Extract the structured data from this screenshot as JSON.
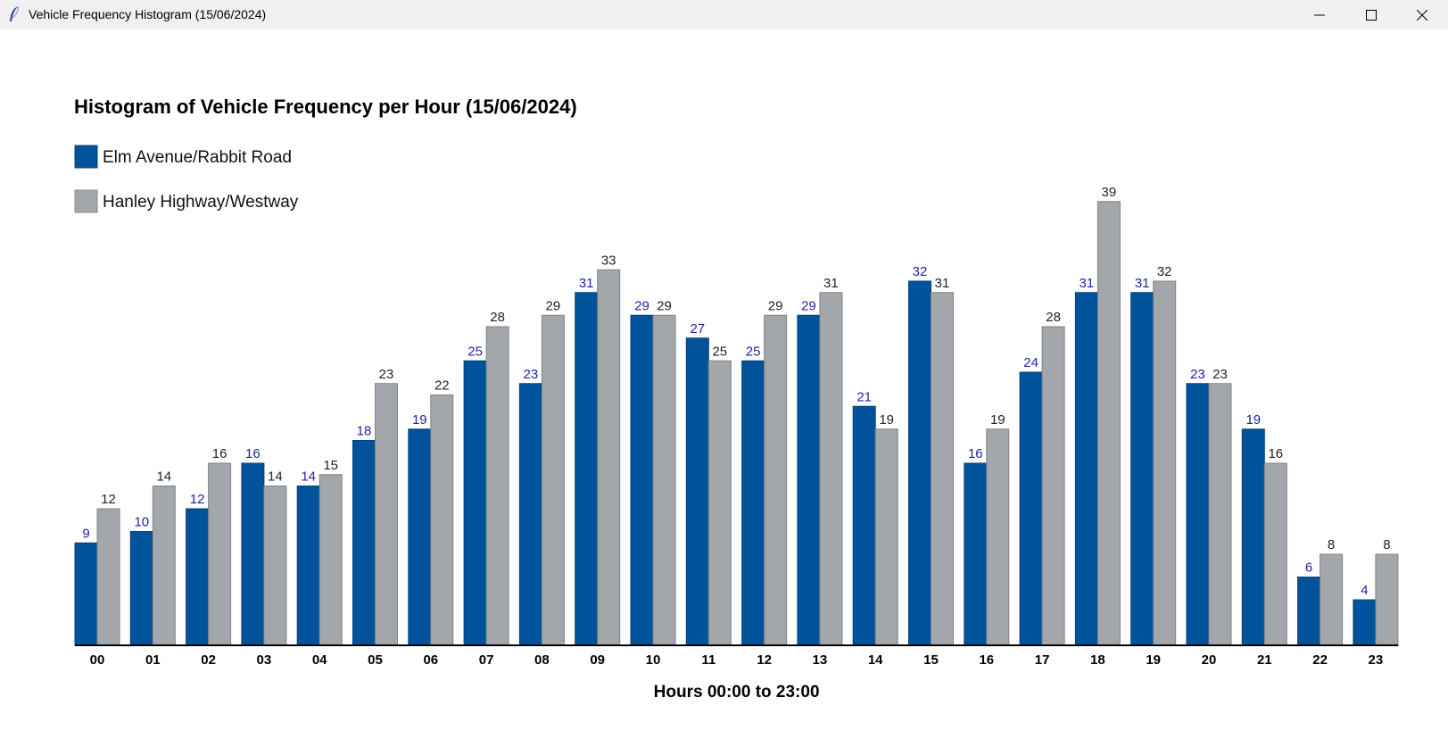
{
  "window": {
    "title": "Vehicle Frequency Histogram  (15/06/2024)",
    "icon": "feather-icon"
  },
  "colors": {
    "series1": "#00539b",
    "series2": "#a3a6aa",
    "label1": "#2222aa",
    "label2": "#222222"
  },
  "chart_data": {
    "type": "bar",
    "title": "Histogram of Vehicle Frequency per Hour  (15/06/2024)",
    "xlabel": "Hours 00:00 to 23:00",
    "ylabel": "",
    "ylim": [
      0,
      45
    ],
    "grid": false,
    "legend": "top-left",
    "categories": [
      "00",
      "01",
      "02",
      "03",
      "04",
      "05",
      "06",
      "07",
      "08",
      "09",
      "10",
      "11",
      "12",
      "13",
      "14",
      "15",
      "16",
      "17",
      "18",
      "19",
      "20",
      "21",
      "22",
      "23"
    ],
    "series": [
      {
        "name": "Elm Avenue/Rabbit Road",
        "values": [
          9,
          10,
          12,
          16,
          14,
          18,
          19,
          25,
          23,
          31,
          29,
          27,
          25,
          29,
          21,
          32,
          16,
          24,
          31,
          31,
          23,
          19,
          6,
          4
        ]
      },
      {
        "name": "Hanley Highway/Westway",
        "values": [
          12,
          14,
          16,
          14,
          15,
          23,
          22,
          28,
          29,
          33,
          29,
          25,
          29,
          31,
          19,
          31,
          19,
          28,
          39,
          32,
          23,
          16,
          8,
          8
        ]
      }
    ]
  }
}
